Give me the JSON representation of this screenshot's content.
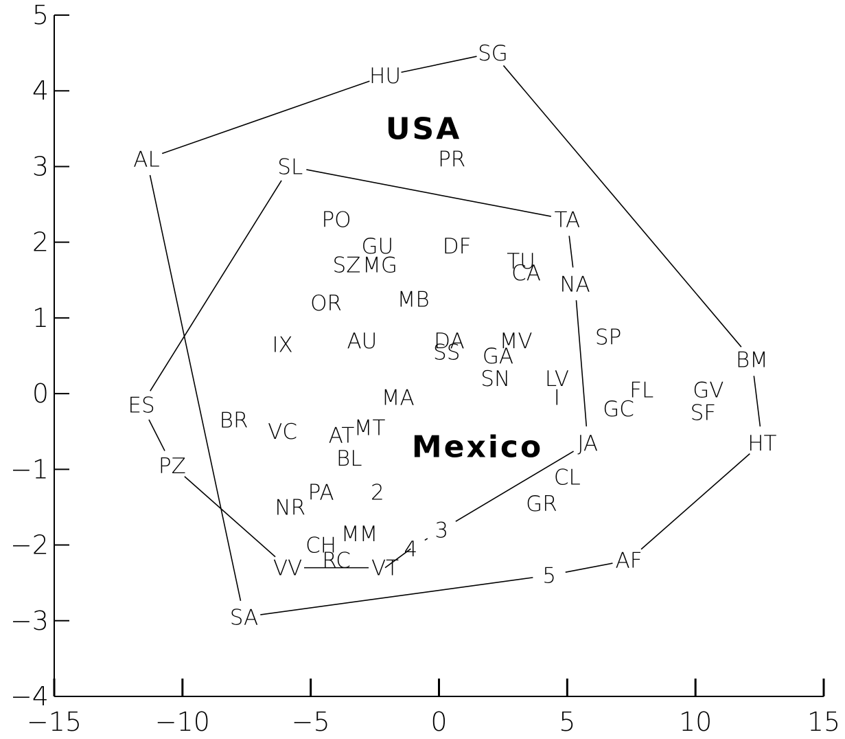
{
  "chart_data": {
    "type": "scatter",
    "title": "",
    "xlabel": "",
    "ylabel": "",
    "xlim": [
      -15,
      15
    ],
    "ylim": [
      -4,
      5
    ],
    "xticks": [
      -15,
      -10,
      -5,
      0,
      5,
      10,
      15
    ],
    "yticks": [
      -4,
      -3,
      -2,
      -1,
      0,
      1,
      2,
      3,
      4,
      5
    ],
    "grid": false,
    "regions": [
      {
        "label": "USA",
        "x": -0.6,
        "y": 3.5
      },
      {
        "label": "Mexico",
        "x": 1.5,
        "y": -0.7
      }
    ],
    "points": [
      {
        "label": "SG",
        "x": 2.1,
        "y": 4.5
      },
      {
        "label": "HU",
        "x": -2.1,
        "y": 4.2
      },
      {
        "label": "AL",
        "x": -11.4,
        "y": 3.1
      },
      {
        "label": "SL",
        "x": -5.8,
        "y": 3.0
      },
      {
        "label": "PR",
        "x": 0.5,
        "y": 3.1
      },
      {
        "label": "TA",
        "x": 5.0,
        "y": 2.3
      },
      {
        "label": "PO",
        "x": -4.0,
        "y": 2.3
      },
      {
        "label": "GU",
        "x": -2.4,
        "y": 1.95
      },
      {
        "label": "DF",
        "x": 0.7,
        "y": 1.95
      },
      {
        "label": "TU",
        "x": 3.2,
        "y": 1.75
      },
      {
        "label": "SZ",
        "x": -3.6,
        "y": 1.7
      },
      {
        "label": "MG",
        "x": -2.3,
        "y": 1.7
      },
      {
        "label": "CA",
        "x": 3.4,
        "y": 1.6
      },
      {
        "label": "NA",
        "x": 5.3,
        "y": 1.45
      },
      {
        "label": "MB",
        "x": -1.0,
        "y": 1.25
      },
      {
        "label": "OR",
        "x": -4.4,
        "y": 1.2
      },
      {
        "label": "SP",
        "x": 6.6,
        "y": 0.75
      },
      {
        "label": "IX",
        "x": -6.1,
        "y": 0.65
      },
      {
        "label": "AU",
        "x": -3.0,
        "y": 0.7
      },
      {
        "label": "DA",
        "x": 0.4,
        "y": 0.7
      },
      {
        "label": "MV",
        "x": 3.0,
        "y": 0.7
      },
      {
        "label": "SS",
        "x": 0.3,
        "y": 0.55
      },
      {
        "label": "GA",
        "x": 2.3,
        "y": 0.5
      },
      {
        "label": "BM",
        "x": 12.2,
        "y": 0.45
      },
      {
        "label": "SN",
        "x": 2.2,
        "y": 0.2
      },
      {
        "label": "LV",
        "x": 4.6,
        "y": 0.2
      },
      {
        "label": "I",
        "x": 4.6,
        "y": -0.05
      },
      {
        "label": "FL",
        "x": 7.9,
        "y": 0.05
      },
      {
        "label": "GV",
        "x": 10.5,
        "y": 0.05
      },
      {
        "label": "MA",
        "x": -1.6,
        "y": -0.05
      },
      {
        "label": "ES",
        "x": -11.6,
        "y": -0.15
      },
      {
        "label": "GC",
        "x": 7.0,
        "y": -0.2
      },
      {
        "label": "SF",
        "x": 10.3,
        "y": -0.25
      },
      {
        "label": "BR",
        "x": -8.0,
        "y": -0.35
      },
      {
        "label": "VC",
        "x": -6.1,
        "y": -0.5
      },
      {
        "label": "MT",
        "x": -2.7,
        "y": -0.45
      },
      {
        "label": "AT",
        "x": -3.8,
        "y": -0.55
      },
      {
        "label": "HT",
        "x": 12.6,
        "y": -0.65
      },
      {
        "label": "JA",
        "x": 5.8,
        "y": -0.65
      },
      {
        "label": "BL",
        "x": -3.5,
        "y": -0.85
      },
      {
        "label": "PZ",
        "x": -10.4,
        "y": -0.95
      },
      {
        "label": "CL",
        "x": 5.0,
        "y": -1.1
      },
      {
        "label": "PA",
        "x": -4.6,
        "y": -1.3
      },
      {
        "label": "2",
        "x": -2.4,
        "y": -1.3
      },
      {
        "label": "GR",
        "x": 4.0,
        "y": -1.45
      },
      {
        "label": "NR",
        "x": -5.8,
        "y": -1.5
      },
      {
        "label": "3",
        "x": 0.1,
        "y": -1.8
      },
      {
        "label": "MM",
        "x": -3.1,
        "y": -1.85
      },
      {
        "label": "CH",
        "x": -4.6,
        "y": -2.0
      },
      {
        "label": "4",
        "x": -1.1,
        "y": -2.05
      },
      {
        "label": "RC",
        "x": -4.0,
        "y": -2.2
      },
      {
        "label": "AF",
        "x": 7.4,
        "y": -2.2
      },
      {
        "label": "VV",
        "x": -5.9,
        "y": -2.3
      },
      {
        "label": "VT",
        "x": -2.1,
        "y": -2.3
      },
      {
        "label": "5",
        "x": 4.3,
        "y": -2.4
      },
      {
        "label": "SA",
        "x": -7.6,
        "y": -2.95
      }
    ],
    "hull_lines": [
      {
        "from": "AL",
        "to": "HU"
      },
      {
        "from": "HU",
        "to": "SG"
      },
      {
        "from": "SG",
        "to": "BM"
      },
      {
        "from": "BM",
        "to": "HT"
      },
      {
        "from": "HT",
        "to": "AF"
      },
      {
        "from": "AF",
        "to": "5"
      },
      {
        "from": "5",
        "to": "SA"
      },
      {
        "from": "SA",
        "to": "AL"
      },
      {
        "from": "SL",
        "to": "TA"
      },
      {
        "from": "TA",
        "to": "NA"
      },
      {
        "from": "NA",
        "to": "JA"
      },
      {
        "from": "JA",
        "to": "3"
      },
      {
        "from": "3",
        "to": "4"
      },
      {
        "from": "4",
        "to": "VT"
      },
      {
        "from": "VT",
        "to": "VV"
      },
      {
        "from": "VV",
        "to": "PZ"
      },
      {
        "from": "PZ",
        "to": "ES"
      },
      {
        "from": "ES",
        "to": "SL"
      }
    ]
  }
}
